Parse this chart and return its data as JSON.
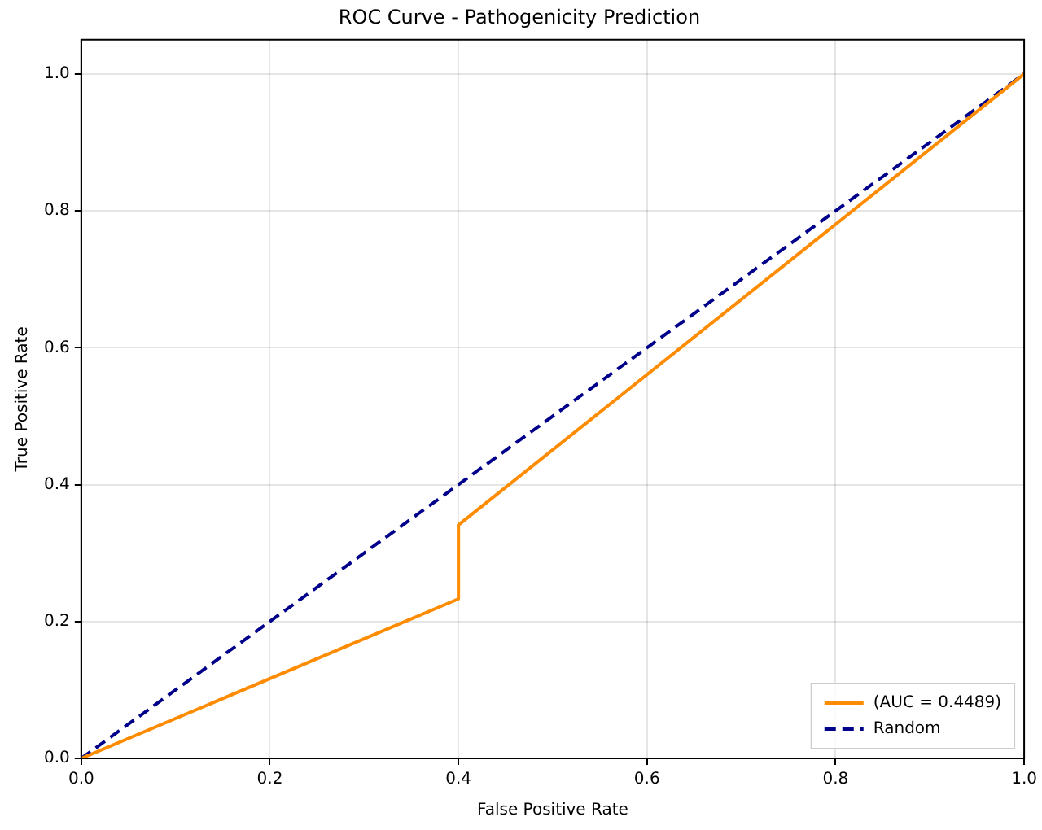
{
  "chart_data": {
    "type": "line",
    "title": "ROC Curve - Pathogenicity Prediction",
    "xlabel": "False Positive Rate",
    "ylabel": "True Positive Rate",
    "xlim": [
      0,
      1
    ],
    "ylim": [
      0,
      1.05
    ],
    "xticks": [
      {
        "value": 0,
        "label": "0.0"
      },
      0.2,
      0.4,
      0.6,
      0.8,
      {
        "value": 1,
        "label": "1.0"
      }
    ],
    "yticks": [
      {
        "value": 0,
        "label": "0.0"
      },
      0.2,
      0.4,
      0.6,
      0.8,
      {
        "value": 1,
        "label": "1.0"
      }
    ],
    "grid": true,
    "legend": "bottom right",
    "marker": "none",
    "series": [
      {
        "name": "(AUC = 0.4489)",
        "color": "#ff8c00",
        "x": [
          0,
          0.4,
          0.4,
          1
        ],
        "values": [
          0,
          0.233,
          0.341,
          1
        ],
        "line_style": "solid"
      },
      {
        "name": "Random",
        "color": "#00008b",
        "x": [
          0,
          1
        ],
        "values": [
          0,
          1
        ],
        "line_style": "dashed"
      }
    ]
  }
}
